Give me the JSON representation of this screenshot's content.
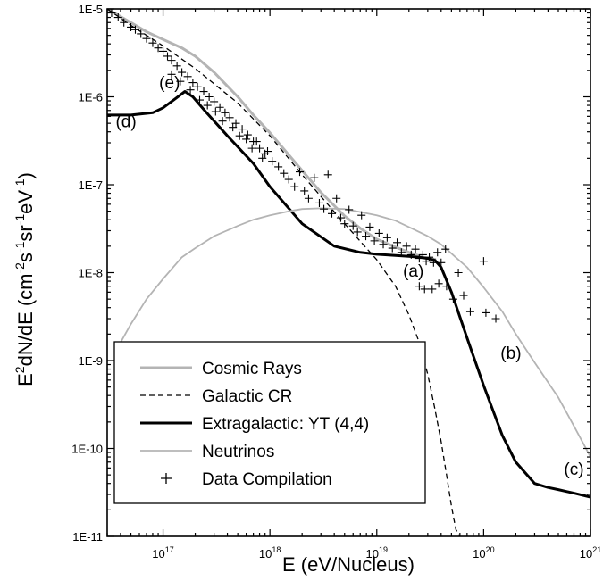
{
  "chart_data": {
    "type": "line",
    "xlabel": "E (eV/Nucleus)",
    "ylabel_parts": {
      "main": "E",
      "sup1": "2",
      "rest": "dN/dE (cm",
      "sup2": "-2",
      "s": "s",
      "sup3": "-1",
      "sr": "sr",
      "sup4": "-1",
      "ev": "eV",
      "sup5": "-1",
      "close": ")"
    },
    "x_scale": "log",
    "y_scale": "log",
    "xlim": [
      3e+16,
      1e+21
    ],
    "ylim": [
      1e-11,
      1e-05
    ],
    "x_ticks": [
      {
        "value": 1e+17,
        "base": "10",
        "exp": "17"
      },
      {
        "value": 1e+18,
        "base": "10",
        "exp": "18"
      },
      {
        "value": 1e+19,
        "base": "10",
        "exp": "19"
      },
      {
        "value": 1e+20,
        "base": "10",
        "exp": "20"
      },
      {
        "value": 1e+21,
        "base": "10",
        "exp": "21"
      }
    ],
    "y_ticks": [
      {
        "value": 1e-05,
        "label": "1E-5"
      },
      {
        "value": 1e-06,
        "label": "1E-6"
      },
      {
        "value": 1e-07,
        "label": "1E-7"
      },
      {
        "value": 1e-08,
        "label": "1E-8"
      },
      {
        "value": 1e-09,
        "label": "1E-9"
      },
      {
        "value": 1e-10,
        "label": "1E-10"
      },
      {
        "value": 1e-11,
        "label": "1E-11"
      }
    ],
    "grid": false,
    "legend_position": "bottom-left",
    "series": [
      {
        "name": "Cosmic Rays",
        "style": "solid",
        "color": "#b4b4b4",
        "width": 3,
        "x": [
          3e+16,
          5e+16,
          7e+16,
          1e+17,
          1.5e+17,
          2e+17,
          3e+17,
          5e+17,
          7e+17,
          1e+18,
          2e+18,
          3e+18,
          5e+18,
          7e+18,
          1e+19,
          1.5e+19,
          2e+19,
          2.5e+19,
          3e+19,
          3.5e+19
        ],
        "y": [
          1e-05,
          7e-06,
          5.5e-06,
          4.5e-06,
          3.6e-06,
          2.9e-06,
          1.9e-06,
          1e-06,
          6.2e-07,
          3.9e-07,
          1.45e-07,
          8.2e-08,
          4.4e-08,
          3.2e-08,
          2.4e-08,
          1.95e-08,
          1.7e-08,
          1.55e-08,
          1.45e-08,
          1.42e-08
        ]
      },
      {
        "name": "Galactic CR",
        "style": "dashed",
        "color": "#000000",
        "width": 1.3,
        "x": [
          3e+16,
          5e+16,
          1e+17,
          2e+17,
          5e+17,
          1e+18,
          2e+18,
          5e+18,
          1e+19,
          1.5e+19,
          2e+19,
          2.5e+19,
          3e+19,
          3.5e+19,
          4e+19,
          4.5e+19,
          5e+19,
          5.5e+19,
          6e+19
        ],
        "y": [
          1e-05,
          6.5e-06,
          3.8e-06,
          2.1e-06,
          8.5e-07,
          3.6e-07,
          1.3e-07,
          3.6e-08,
          1.4e-08,
          7e-09,
          3.3e-09,
          1.6e-09,
          7e-10,
          2.8e-10,
          1.2e-10,
          5e-11,
          2.2e-11,
          1.2e-11,
          1e-11
        ]
      },
      {
        "name": "Extragalactic: YT (4,4)",
        "style": "solid",
        "color": "#000000",
        "width": 3,
        "x": [
          3e+16,
          5e+16,
          8e+16,
          1e+17,
          1.3e+17,
          1.6e+17,
          1.9e+17,
          2.5e+17,
          4e+17,
          7e+17,
          1e+18,
          2e+18,
          4e+18,
          7e+18,
          1e+19,
          1.5e+19,
          2e+19,
          2.5e+19,
          3e+19,
          3.5e+19,
          4e+19,
          5e+19,
          7e+19,
          1e+20,
          1.5e+20,
          2e+20,
          3e+20,
          4e+20,
          5e+20,
          7e+20,
          1e+21
        ],
        "y": [
          6.2e-07,
          6.2e-07,
          6.6e-07,
          7.5e-07,
          9.5e-07,
          1.15e-06,
          1e-06,
          6.8e-07,
          3.6e-07,
          1.75e-07,
          9.5e-08,
          3.6e-08,
          2e-08,
          1.7e-08,
          1.62e-08,
          1.57e-08,
          1.53e-08,
          1.5e-08,
          1.45e-08,
          1.38e-08,
          1.15e-08,
          6e-09,
          1.8e-09,
          5.2e-10,
          1.4e-10,
          7e-11,
          4e-11,
          3.6e-11,
          3.4e-11,
          3.1e-11,
          2.8e-11
        ]
      },
      {
        "name": "Neutrinos",
        "style": "solid",
        "color": "#b4b4b4",
        "width": 1.8,
        "x": [
          4e+16,
          5e+16,
          7e+16,
          1e+17,
          1.5e+17,
          2e+17,
          3e+17,
          5e+17,
          7e+17,
          1e+18,
          1.5e+18,
          2e+18,
          3e+18,
          5e+18,
          7e+18,
          1e+19,
          1.5e+19,
          2e+19,
          3e+19,
          4e+19,
          5e+19,
          7e+19,
          1e+20,
          1.5e+20,
          2e+20,
          3e+20,
          5e+20,
          7e+20,
          1e+21
        ],
        "y": [
          1.6e-09,
          2.6e-09,
          5e-09,
          8.5e-09,
          1.5e-08,
          1.9e-08,
          2.6e-08,
          3.4e-08,
          4e-08,
          4.5e-08,
          5e-08,
          5.3e-08,
          5.4e-08,
          5.3e-08,
          4.9e-08,
          4.5e-08,
          3.9e-08,
          3.3e-08,
          2.6e-08,
          2.1e-08,
          1.65e-08,
          1.15e-08,
          6.8e-09,
          3.6e-09,
          2e-09,
          9.5e-10,
          3.8e-10,
          1.8e-10,
          8e-11
        ]
      },
      {
        "name": "Data Compilation",
        "style": "markers",
        "marker": "+",
        "color": "#000000",
        "points": [
          [
            3.3e+16,
            9e-06
          ],
          [
            3.8e+16,
            8e-06
          ],
          [
            4.3e+16,
            7e-06
          ],
          [
            5e+16,
            6.2e-06
          ],
          [
            5.5e+16,
            5.8e-06
          ],
          [
            6.2e+16,
            5.2e-06
          ],
          [
            7e+16,
            4.6e-06
          ],
          [
            8e+16,
            4.1e-06
          ],
          [
            9e+16,
            3.6e-06
          ],
          [
            1e+17,
            3.3e-06
          ],
          [
            1.1e+17,
            2.9e-06
          ],
          [
            1.2e+17,
            2.6e-06
          ],
          [
            1.35e+17,
            2.25e-06
          ],
          [
            1.5e+17,
            1.9e-06
          ],
          [
            1.7e+17,
            1.7e-06
          ],
          [
            1.9e+17,
            1.45e-06
          ],
          [
            2.1e+17,
            1.3e-06
          ],
          [
            2.4e+17,
            1.15e-06
          ],
          [
            2.7e+17,
            1e-06
          ],
          [
            3e+17,
            8.8e-07
          ],
          [
            3.4e+17,
            7.6e-07
          ],
          [
            3.8e+17,
            6.6e-07
          ],
          [
            4.2e+17,
            5.8e-07
          ],
          [
            4.8e+17,
            5e-07
          ],
          [
            5.5e+17,
            4.3e-07
          ],
          [
            6.2e+17,
            3.7e-07
          ],
          [
            7e+17,
            3.1e-07
          ],
          [
            8e+17,
            2.6e-07
          ],
          [
            9e+17,
            2.25e-07
          ],
          [
            1.2e+17,
            1.8e-06
          ],
          [
            1.45e+17,
            1.5e-06
          ],
          [
            1.8e+17,
            1.2e-06
          ],
          [
            2.2e+17,
            9.2e-07
          ],
          [
            2.6e+17,
            8e-07
          ],
          [
            3.1e+17,
            6.8e-07
          ],
          [
            3.6e+17,
            5.3e-07
          ],
          [
            4.5e+17,
            4.5e-07
          ],
          [
            5.2e+17,
            3.6e-07
          ],
          [
            6e+17,
            3.3e-07
          ],
          [
            6.8e+17,
            2.6e-07
          ],
          [
            7.5e+17,
            3.1e-07
          ],
          [
            8.5e+17,
            2e-07
          ],
          [
            9.5e+17,
            2.4e-07
          ],
          [
            1.05e+18,
            1.85e-07
          ],
          [
            1.2e+18,
            1.6e-07
          ],
          [
            1.35e+18,
            1.35e-07
          ],
          [
            1.5e+18,
            1.15e-07
          ],
          [
            1.7e+18,
            9.5e-08
          ],
          [
            1.9e+18,
            1.4e-07
          ],
          [
            2.1e+18,
            8.5e-08
          ],
          [
            2.3e+18,
            7e-08
          ],
          [
            2.6e+18,
            1.2e-07
          ],
          [
            2.9e+18,
            6.2e-08
          ],
          [
            3.2e+18,
            5.3e-08
          ],
          [
            3.5e+18,
            1.3e-07
          ],
          [
            3.8e+18,
            4.7e-08
          ],
          [
            4.2e+18,
            7e-08
          ],
          [
            4.6e+18,
            4.2e-08
          ],
          [
            5e+18,
            3.6e-08
          ],
          [
            5.5e+18,
            5.2e-08
          ],
          [
            6e+18,
            3.4e-08
          ],
          [
            6.6e+18,
            2.9e-08
          ],
          [
            7.2e+18,
            4.5e-08
          ],
          [
            7.9e+18,
            2.6e-08
          ],
          [
            8.6e+18,
            3.3e-08
          ],
          [
            9.5e+18,
            2.3e-08
          ],
          [
            1.05e+19,
            2.8e-08
          ],
          [
            1.15e+19,
            2.1e-08
          ],
          [
            1.25e+19,
            2.5e-08
          ],
          [
            1.4e+19,
            1.9e-08
          ],
          [
            1.55e+19,
            2.2e-08
          ],
          [
            1.7e+19,
            1.7e-08
          ],
          [
            1.9e+19,
            2e-08
          ],
          [
            2.1e+19,
            1.6e-08
          ],
          [
            2.3e+19,
            1.85e-08
          ],
          [
            2.5e+19,
            1.45e-08
          ],
          [
            2.7e+19,
            1.6e-08
          ],
          [
            2.9e+19,
            1.35e-08
          ],
          [
            3.1e+19,
            1.5e-08
          ],
          [
            3.4e+19,
            1.3e-08
          ],
          [
            3.7e+19,
            1.7e-08
          ],
          [
            4e+19,
            1.3e-08
          ],
          [
            4.4e+19,
            1.85e-08
          ],
          [
            2.8e+19,
            6.5e-09
          ],
          [
            3.3e+19,
            6.5e-09
          ],
          [
            3.8e+19,
            7.5e-09
          ],
          [
            4.5e+19,
            7e-09
          ],
          [
            5.2e+19,
            5e-09
          ],
          [
            5.8e+19,
            1e-08
          ],
          [
            6.5e+19,
            5.5e-09
          ],
          [
            7.5e+19,
            3.6e-09
          ],
          [
            1e+20,
            1.35e-08
          ],
          [
            1.05e+20,
            3.5e-09
          ],
          [
            1.3e+20,
            3e-09
          ],
          [
            2.5e+19,
            7e-09
          ]
        ]
      }
    ],
    "annotations": [
      {
        "text": "(a)",
        "x": 2.2e+19,
        "y": 9e-09
      },
      {
        "text": "(b)",
        "x": 1.8e+20,
        "y": 1.05e-09
      },
      {
        "text": "(c)",
        "x": 7e+20,
        "y": 5e-11
      },
      {
        "text": "(d)",
        "x": 4.5e+16,
        "y": 4.5e-07
      },
      {
        "text": "(e)",
        "x": 1.15e+17,
        "y": 1.25e-06
      }
    ]
  }
}
